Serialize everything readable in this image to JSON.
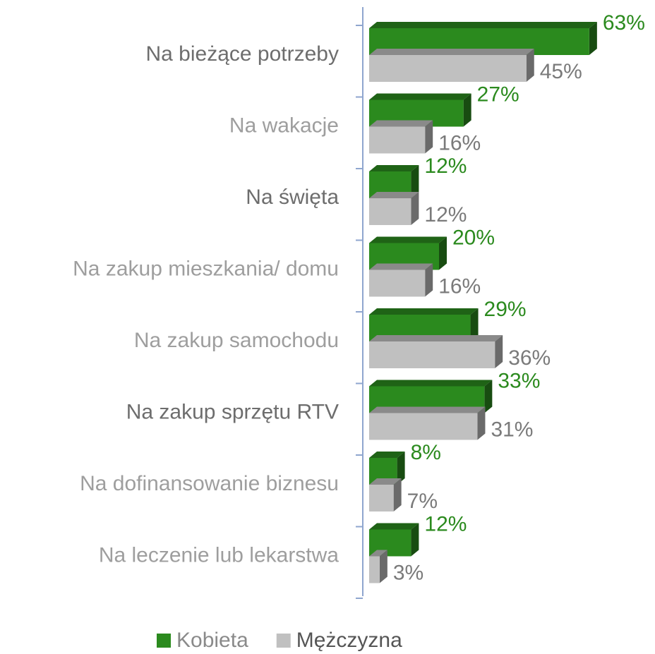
{
  "chart_data": {
    "type": "bar",
    "orientation": "horizontal",
    "categories": [
      "Na bieżące potrzeby",
      "Na wakacje",
      "Na święta",
      "Na zakup mieszkania/ domu",
      "Na zakup samochodu",
      "Na zakup sprzętu RTV",
      "Na dofinansowanie biznesu",
      "Na leczenie lub lekarstwa"
    ],
    "series": [
      {
        "name": "Kobieta",
        "color": "#2b8a1e",
        "values": [
          63,
          27,
          12,
          20,
          29,
          33,
          8,
          12
        ],
        "value_labels": [
          "63%",
          "27%",
          "12%",
          "20%",
          "29%",
          "33%",
          "8%",
          "12%"
        ]
      },
      {
        "name": "Mężczyzna",
        "color": "#c0c0c0",
        "values": [
          45,
          16,
          12,
          16,
          36,
          31,
          7,
          3
        ],
        "value_labels": [
          "45%",
          "16%",
          "12%",
          "16%",
          "36%",
          "31%",
          "7%",
          "3%"
        ]
      }
    ],
    "legend": "bottom"
  }
}
